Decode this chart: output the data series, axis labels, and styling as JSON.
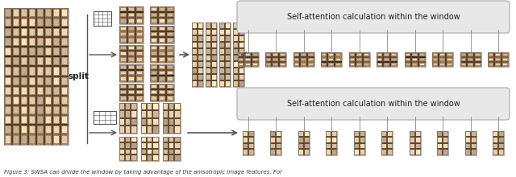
{
  "background_color": "#ffffff",
  "text_color": "#222222",
  "box1_text": "Self-attention calculation within the window",
  "box2_text": "Self-attention calculation within the window",
  "split_text": "split",
  "fig_caption": "Figure 3: SWSA can divide the window by taking advantage of the anisotropic image features. For",
  "box_fill": "#e8e8e8",
  "box_edge": "#aaaaaa",
  "arrow_color": "#555555",
  "line_color": "#555555",
  "sepia_light": [
    0.87,
    0.78,
    0.65
  ],
  "sepia_dark": [
    0.42,
    0.32,
    0.22
  ],
  "sepia_mid": [
    0.65,
    0.52,
    0.38
  ]
}
